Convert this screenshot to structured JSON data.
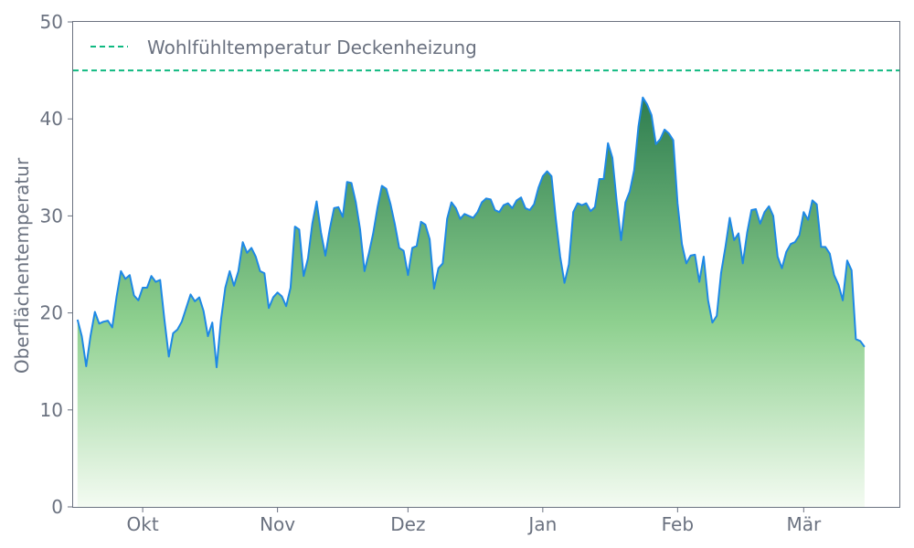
{
  "chart_data": {
    "type": "area",
    "xlabel": "",
    "ylabel": "Oberflächentemperatur",
    "ylim": [
      0,
      50
    ],
    "yticks": [
      0,
      10,
      20,
      30,
      40,
      50
    ],
    "xticks": [
      {
        "label": "Okt",
        "date": "2023-10-01"
      },
      {
        "label": "Nov",
        "date": "2023-11-01"
      },
      {
        "label": "Dez",
        "date": "2023-12-01"
      },
      {
        "label": "Jan",
        "date": "2024-01-01"
      },
      {
        "label": "Feb",
        "date": "2024-02-01"
      },
      {
        "label": "Mär",
        "date": "2024-03-01"
      }
    ],
    "xlim": [
      "2023-09-15",
      "2024-03-23"
    ],
    "start_date": "2023-09-16",
    "values": [
      19.3,
      17.6,
      14.5,
      17.6,
      20.1,
      18.9,
      19.1,
      19.2,
      18.5,
      21.7,
      24.3,
      23.5,
      23.9,
      21.8,
      21.3,
      22.6,
      22.6,
      23.8,
      23.2,
      23.4,
      19.3,
      15.5,
      17.9,
      18.3,
      19.1,
      20.5,
      21.9,
      21.2,
      21.6,
      20.2,
      17.6,
      19.0,
      14.4,
      19.3,
      22.6,
      24.3,
      22.8,
      24.3,
      27.3,
      26.2,
      26.7,
      25.8,
      24.3,
      24.1,
      20.5,
      21.6,
      22.1,
      21.7,
      20.7,
      22.6,
      28.9,
      28.6,
      23.8,
      25.6,
      29.2,
      31.5,
      28.3,
      25.9,
      28.6,
      30.8,
      30.9,
      29.9,
      33.5,
      33.4,
      31.4,
      28.6,
      24.3,
      26.1,
      28.2,
      30.9,
      33.1,
      32.8,
      31.2,
      29.1,
      26.7,
      26.4,
      23.9,
      26.7,
      26.9,
      29.4,
      29.1,
      27.6,
      22.5,
      24.6,
      25.1,
      29.7,
      31.4,
      30.8,
      29.7,
      30.2,
      30.0,
      29.8,
      30.4,
      31.4,
      31.8,
      31.7,
      30.6,
      30.4,
      31.1,
      31.3,
      30.8,
      31.6,
      31.9,
      30.8,
      30.6,
      31.2,
      32.9,
      34.1,
      34.6,
      34.1,
      29.7,
      25.8,
      23.1,
      25.0,
      30.4,
      31.3,
      31.1,
      31.3,
      30.5,
      30.9,
      33.8,
      33.8,
      37.5,
      36.0,
      31.5,
      27.5,
      31.4,
      32.5,
      34.7,
      39.2,
      42.2,
      41.5,
      40.4,
      37.4,
      37.9,
      38.9,
      38.5,
      37.8,
      31.3,
      27.1,
      25.1,
      25.9,
      26.0,
      23.2,
      25.8,
      21.3,
      19.0,
      19.7,
      24.1,
      26.8,
      29.8,
      27.5,
      28.2,
      25.1,
      28.3,
      30.6,
      30.7,
      29.2,
      30.4,
      31.0,
      30.0,
      25.8,
      24.6,
      26.3,
      27.1,
      27.3,
      28.0,
      30.4,
      29.6,
      31.6,
      31.2,
      26.8,
      26.8,
      26.1,
      23.9,
      22.9,
      21.3,
      25.4,
      24.4,
      17.3,
      17.1,
      16.5
    ],
    "reference_line": {
      "label": "Wohlfühltemperatur Deckenheizung",
      "value": 45,
      "color": "#10b981",
      "style": "dashed"
    },
    "legend_position": "top-left",
    "grid": false,
    "line_color": "#1e88e5",
    "fill_top_color": "#2e7d4f",
    "fill_bottom_color": "#f4fbf2",
    "axis_color": "#6b7280"
  }
}
